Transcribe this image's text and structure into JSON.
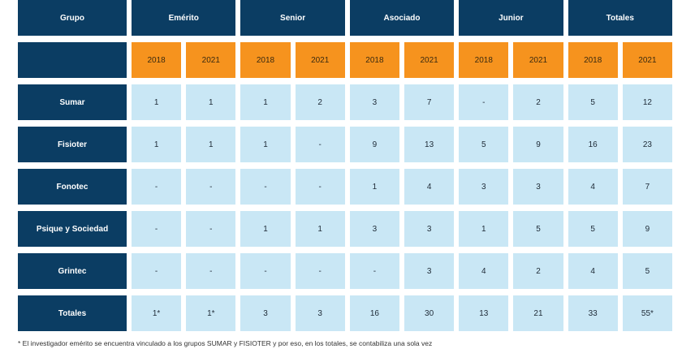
{
  "header": {
    "group_label": "Grupo",
    "groups": [
      "Emérito",
      "Senior",
      "Asociado",
      "Junior",
      "Totales"
    ],
    "years": [
      "2018",
      "2021"
    ]
  },
  "rows": [
    {
      "label": "Sumar",
      "values": [
        "1",
        "1",
        "1",
        "2",
        "3",
        "7",
        "-",
        "2",
        "5",
        "12"
      ]
    },
    {
      "label": "Fisioter",
      "values": [
        "1",
        "1",
        "1",
        "-",
        "9",
        "13",
        "5",
        "9",
        "16",
        "23"
      ]
    },
    {
      "label": "Fonotec",
      "values": [
        "-",
        "-",
        "-",
        "-",
        "1",
        "4",
        "3",
        "3",
        "4",
        "7"
      ]
    },
    {
      "label": "Psique y Sociedad",
      "values": [
        "-",
        "-",
        "1",
        "1",
        "3",
        "3",
        "1",
        "5",
        "5",
        "9"
      ]
    },
    {
      "label": "Grintec",
      "values": [
        "-",
        "-",
        "-",
        "-",
        "-",
        "3",
        "4",
        "2",
        "4",
        "5"
      ]
    },
    {
      "label": "Totales",
      "values": [
        "1*",
        "1*",
        "3",
        "3",
        "16",
        "30",
        "13",
        "21",
        "33",
        "55*"
      ]
    }
  ],
  "footnote": "* El investigador emérito se encuentra vinculado a los grupos SUMAR y FISIOTER y por eso, en los totales, se contabiliza una sola vez",
  "colors": {
    "header_bg": "#0b3d63",
    "year_bg": "#f6931e",
    "value_bg": "#c9e7f5"
  }
}
